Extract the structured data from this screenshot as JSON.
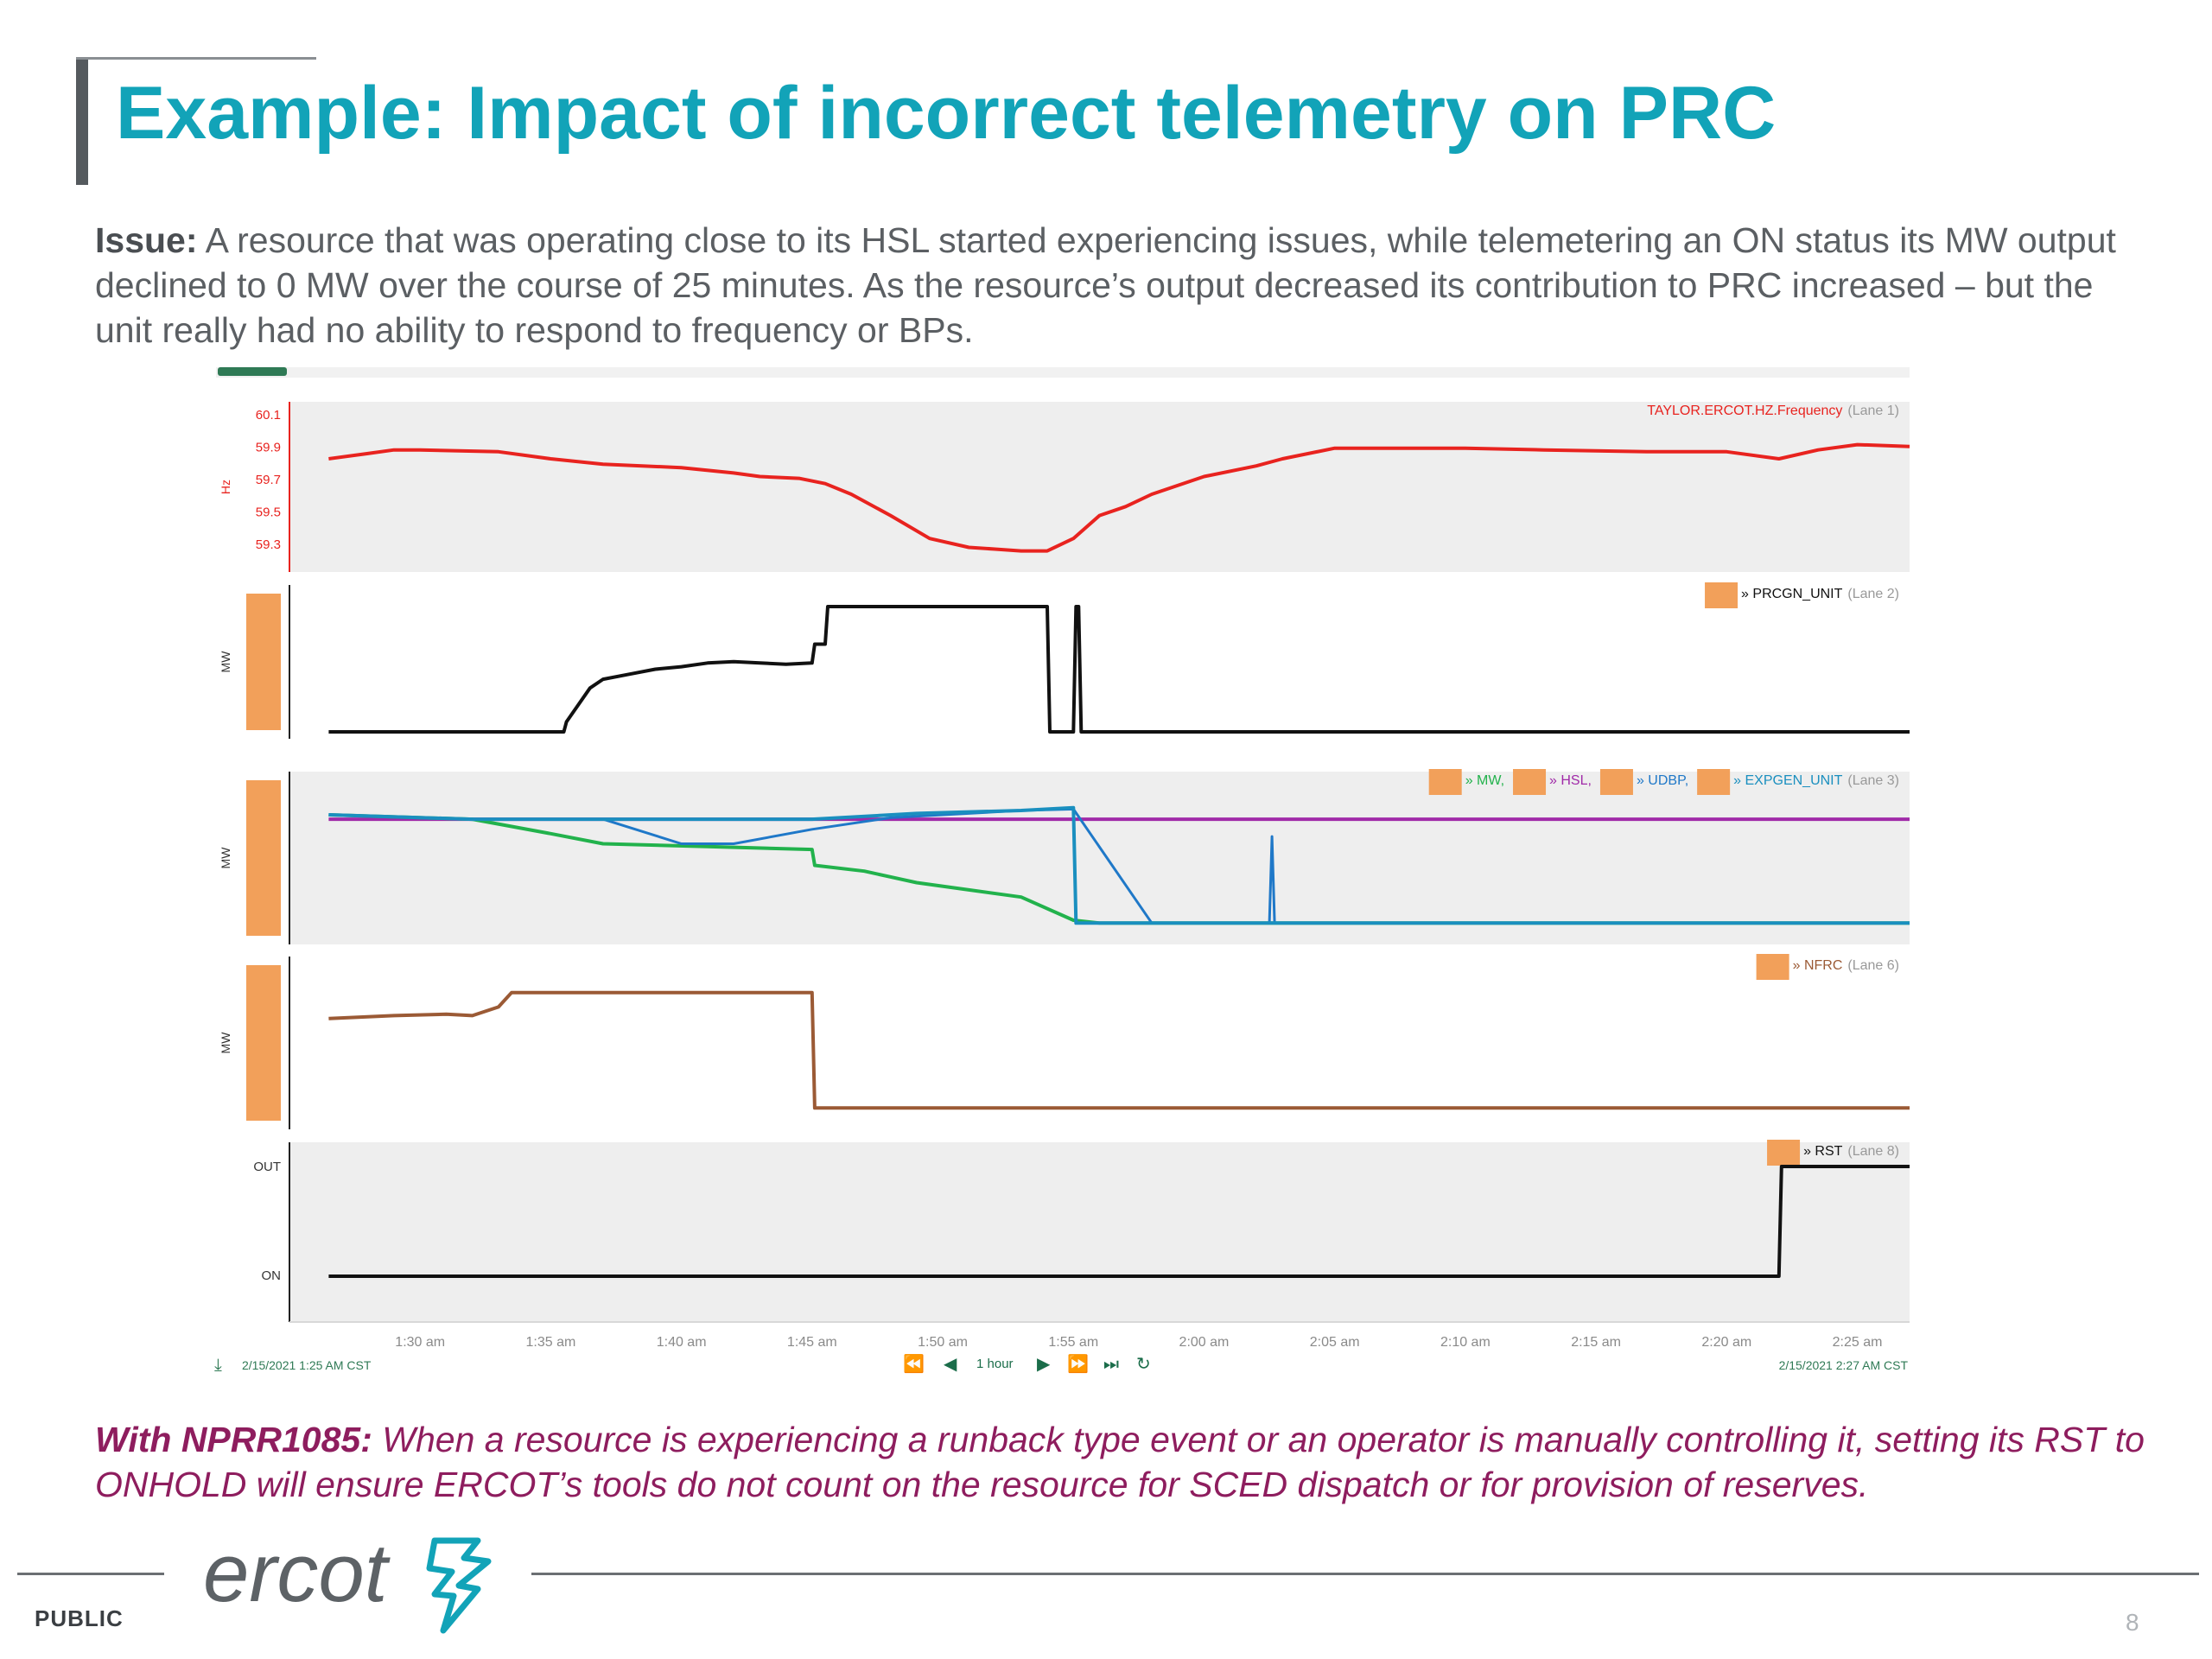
{
  "slide": {
    "title": "Example: Impact of incorrect telemetry on PRC",
    "issue_label": "Issue:",
    "issue_text": "A resource that was operating close to its HSL started experiencing issues, while telemetering an ON status its MW output declined to 0 MW over the course of 25 minutes. As the resource’s output decreased its contribution to PRC increased – but the unit really had no ability to respond to frequency or BPs.",
    "nprr_label": "With NPRR1085:",
    "nprr_text": "When a resource is experiencing a runback type event or an operator is manually controlling it, setting its RST to ONHOLD will ensure ERCOT’s tools do not count on the resource for SCED dispatch or for provision of reserves.",
    "logo_text": "ercot",
    "classification": "PUBLIC",
    "page_number": "8"
  },
  "colors": {
    "title": "#12a3b8",
    "nprr": "#8e1d5e",
    "frequency": "#e8231f",
    "prcgn": "#111111",
    "mw": "#22b24c",
    "hsl": "#a02aa8",
    "udbp": "#1f78c8",
    "expgen": "#1a8fbf",
    "nfrc": "#9b5a35",
    "rst": "#111111",
    "legend_swatch": "#f2a05a"
  },
  "chart_data": {
    "type": "line",
    "x_ticks": [
      "1:30 am",
      "1:35 am",
      "1:40 am",
      "1:45 am",
      "1:50 am",
      "1:55 am",
      "2:00 am",
      "2:05 am",
      "2:10 am",
      "2:15 am",
      "2:20 am",
      "2:25 am"
    ],
    "start_label": "2/15/2021 1:25 AM CST",
    "end_label": "2/15/2021 2:27 AM CST",
    "nav_label": "1 hour",
    "lanes": [
      {
        "id": "lane1",
        "ylabel": "Hz",
        "yticks": [
          "60.1",
          "59.9",
          "59.7",
          "59.5",
          "59.3"
        ],
        "ylim": [
          59.3,
          60.1
        ],
        "legend": [
          {
            "name": "TAYLOR.ERCOT.HZ.Frequency",
            "lane": "(Lane 1)",
            "color": "#e8231f"
          }
        ],
        "series": [
          {
            "name": "TAYLOR.ERCOT.HZ.Frequency",
            "x": [
              1.5,
              3,
              4,
              5,
              8,
              10,
              12,
              15,
              17,
              18,
              19.5,
              20.5,
              21.5,
              23,
              24.5,
              26,
              27,
              28,
              29,
              30,
              31,
              32,
              33,
              35,
              37,
              38,
              40,
              42,
              45,
              48,
              52,
              55,
              57,
              58.5,
              60,
              62
            ],
            "y": [
              59.9,
              59.93,
              59.95,
              59.95,
              59.94,
              59.9,
              59.87,
              59.85,
              59.82,
              59.8,
              59.79,
              59.76,
              59.7,
              59.58,
              59.45,
              59.4,
              59.39,
              59.38,
              59.38,
              59.45,
              59.58,
              59.63,
              59.7,
              59.8,
              59.86,
              59.9,
              59.96,
              59.96,
              59.96,
              59.95,
              59.94,
              59.94,
              59.9,
              59.95,
              59.98,
              59.97
            ]
          }
        ]
      },
      {
        "id": "lane2",
        "ylabel": "MW",
        "legend": [
          {
            "name": "PRCGN_UNIT",
            "lane": "(Lane 2)",
            "color": "#111111"
          }
        ],
        "ylim": [
          0,
          1
        ],
        "series": [
          {
            "name": "PRCGN_UNIT",
            "x": [
              1.5,
              10.5,
              10.6,
              11,
              11.5,
              12,
              13,
              14,
              15,
              16,
              17,
              18,
              19,
              20,
              20.1,
              20.5,
              20.6,
              29,
              29.1,
              30,
              30.1,
              30.2,
              30.3,
              62
            ],
            "y": [
              0,
              0,
              0.08,
              0.2,
              0.35,
              0.42,
              0.46,
              0.5,
              0.52,
              0.55,
              0.56,
              0.55,
              0.54,
              0.55,
              0.7,
              0.7,
              1.0,
              1.0,
              0,
              0,
              1.0,
              1.0,
              0,
              0
            ]
          }
        ]
      },
      {
        "id": "lane3",
        "ylabel": "MW",
        "legend": [
          {
            "name": "MW",
            "color": "#22b24c"
          },
          {
            "name": "HSL",
            "color": "#a02aa8"
          },
          {
            "name": "UDBP",
            "color": "#1f78c8"
          },
          {
            "name": "EXPGEN_UNIT",
            "lane": "(Lane 3)",
            "color": "#1a8fbf"
          }
        ],
        "ylim": [
          0,
          1
        ],
        "series": [
          {
            "name": "HSL",
            "x": [
              1.5,
              62
            ],
            "y": [
              0.82,
              0.82
            ]
          },
          {
            "name": "MW",
            "x": [
              1.5,
              7,
              10,
              12,
              14,
              16,
              20,
              20.1,
              22,
              24,
              26,
              28,
              30,
              31,
              62
            ],
            "y": [
              0.85,
              0.82,
              0.72,
              0.65,
              0.64,
              0.63,
              0.61,
              0.5,
              0.46,
              0.38,
              0.33,
              0.28,
              0.12,
              0.1,
              0.1
            ]
          },
          {
            "name": "UDBP",
            "x": [
              1.5,
              7,
              10,
              12,
              15,
              17,
              20,
              23,
              25,
              28,
              30,
              33,
              37.5,
              37.6,
              37.7,
              62
            ],
            "y": [
              0.85,
              0.82,
              0.82,
              0.82,
              0.65,
              0.65,
              0.75,
              0.83,
              0.85,
              0.88,
              0.89,
              0.1,
              0.1,
              0.7,
              0.1,
              0.1
            ]
          },
          {
            "name": "EXPGEN_UNIT",
            "x": [
              1.5,
              7,
              10,
              14,
              20,
              24,
              28,
              30,
              30.1,
              62
            ],
            "y": [
              0.85,
              0.82,
              0.82,
              0.82,
              0.82,
              0.86,
              0.88,
              0.9,
              0.1,
              0.1
            ]
          }
        ]
      },
      {
        "id": "lane4",
        "ylabel": "MW",
        "legend": [
          {
            "name": "NFRC",
            "lane": "(Lane 6)",
            "color": "#9b5a35"
          }
        ],
        "ylim": [
          0,
          1
        ],
        "series": [
          {
            "name": "NFRC",
            "x": [
              1.5,
              4,
              6,
              7,
              8,
              8.5,
              9,
              20,
              20.1,
              62
            ],
            "y": [
              0.72,
              0.74,
              0.75,
              0.74,
              0.8,
              0.9,
              0.9,
              0.9,
              0.1,
              0.1
            ]
          }
        ]
      },
      {
        "id": "lane5",
        "yticks": [
          "OUT",
          "ON"
        ],
        "legend": [
          {
            "name": "RST",
            "lane": "(Lane 8)",
            "color": "#111111"
          }
        ],
        "ylim": [
          0,
          1
        ],
        "series": [
          {
            "name": "RST",
            "x": [
              1.5,
              57,
              57.1,
              62
            ],
            "y": [
              0,
              0,
              1,
              1
            ]
          }
        ]
      }
    ]
  }
}
